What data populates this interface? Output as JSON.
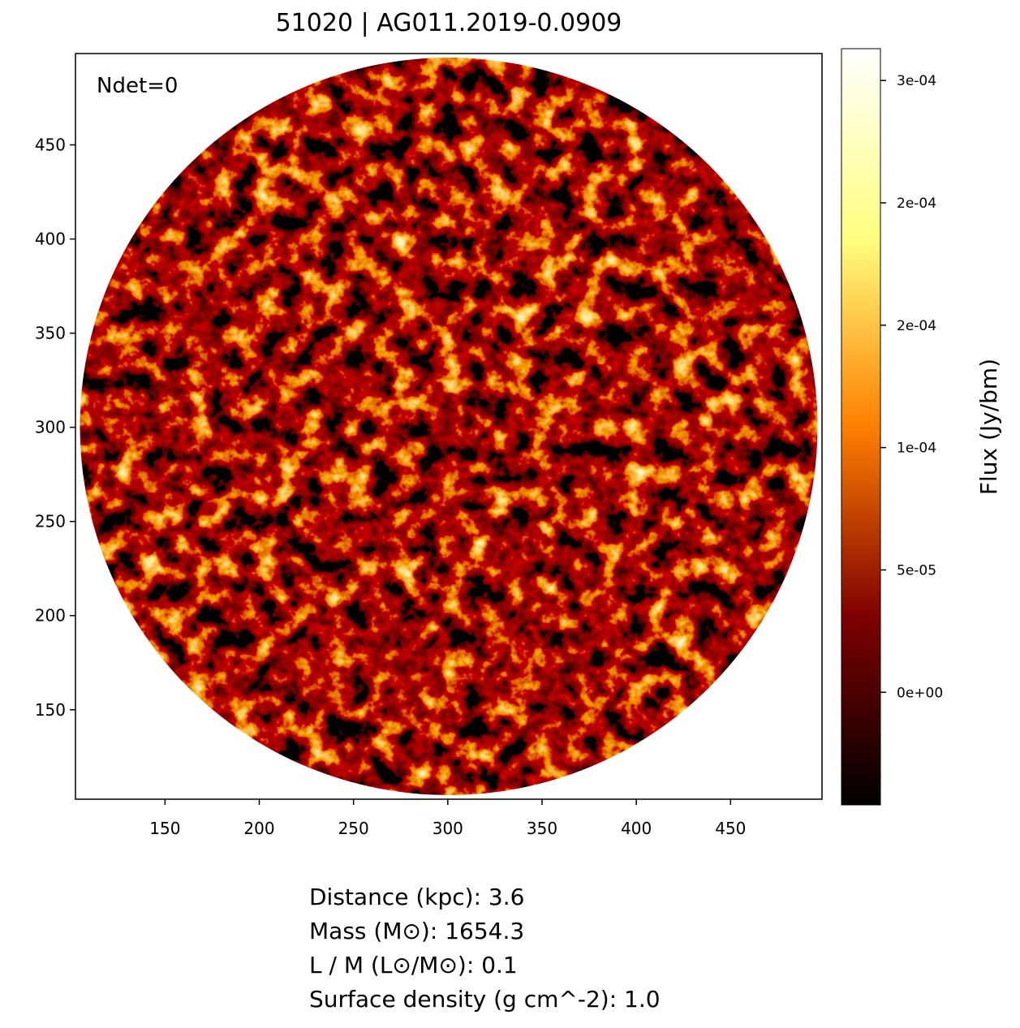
{
  "chart_data": {
    "type": "image",
    "title": "51020 | AG011.2019-0.0909",
    "annotation": "Ndet=0",
    "xlim": [
      102.5,
      498.5
    ],
    "ylim": [
      102.5,
      498.5
    ],
    "xticks": [
      150,
      200,
      250,
      300,
      350,
      400,
      450
    ],
    "yticks": [
      150,
      200,
      250,
      300,
      350,
      400,
      450
    ],
    "colorbar": {
      "label": "Flux (Jy/bm)",
      "lim": [
        -4.6e-05,
        0.000263
      ],
      "ticks": [
        {
          "value": 0,
          "label": "0e+00"
        },
        {
          "value": 5e-05,
          "label": "5e-05"
        },
        {
          "value": 0.0001,
          "label": "1e-04"
        },
        {
          "value": 0.00015,
          "label": "2e-04"
        },
        {
          "value": 0.0002,
          "label": "2e-04"
        },
        {
          "value": 0.00025,
          "label": "3e-04"
        }
      ]
    },
    "info": [
      "Distance (kpc): 3.6",
      "Mass (M⊙): 1654.3",
      "L / M (L⊙/M⊙): 0.1",
      "Surface density (g cm^-2): 1.0"
    ]
  }
}
